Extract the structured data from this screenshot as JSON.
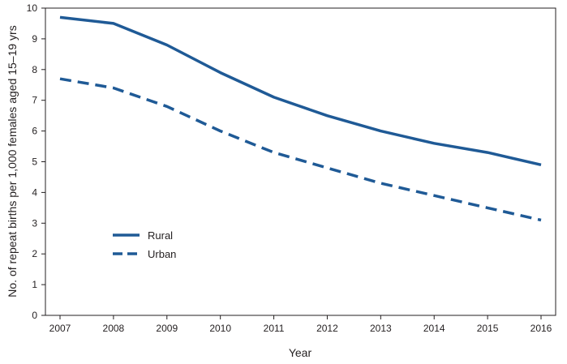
{
  "chart_data": {
    "type": "line",
    "title": "",
    "xlabel": "Year",
    "ylabel": "No. of repeat births per 1,000 females aged 15–19 yrs",
    "x": [
      "2007",
      "2008",
      "2009",
      "2010",
      "2011",
      "2012",
      "2013",
      "2014",
      "2015",
      "2016"
    ],
    "ylim": [
      0,
      10
    ],
    "yticks": [
      "0",
      "1",
      "2",
      "3",
      "4",
      "5",
      "6",
      "7",
      "8",
      "9",
      "10"
    ],
    "grid": false,
    "legend_position": "lower-left",
    "series": [
      {
        "name": "Rural",
        "style": "solid",
        "values": [
          9.7,
          9.5,
          8.8,
          7.9,
          7.1,
          6.5,
          6.0,
          5.6,
          5.3,
          4.9
        ]
      },
      {
        "name": "Urban",
        "style": "dashed",
        "values": [
          7.7,
          7.4,
          6.8,
          6.0,
          5.3,
          4.8,
          4.3,
          3.9,
          3.5,
          3.1
        ]
      }
    ],
    "colors": {
      "line": "#1f5a96",
      "axis": "#231f20",
      "text": "#231f20"
    }
  }
}
